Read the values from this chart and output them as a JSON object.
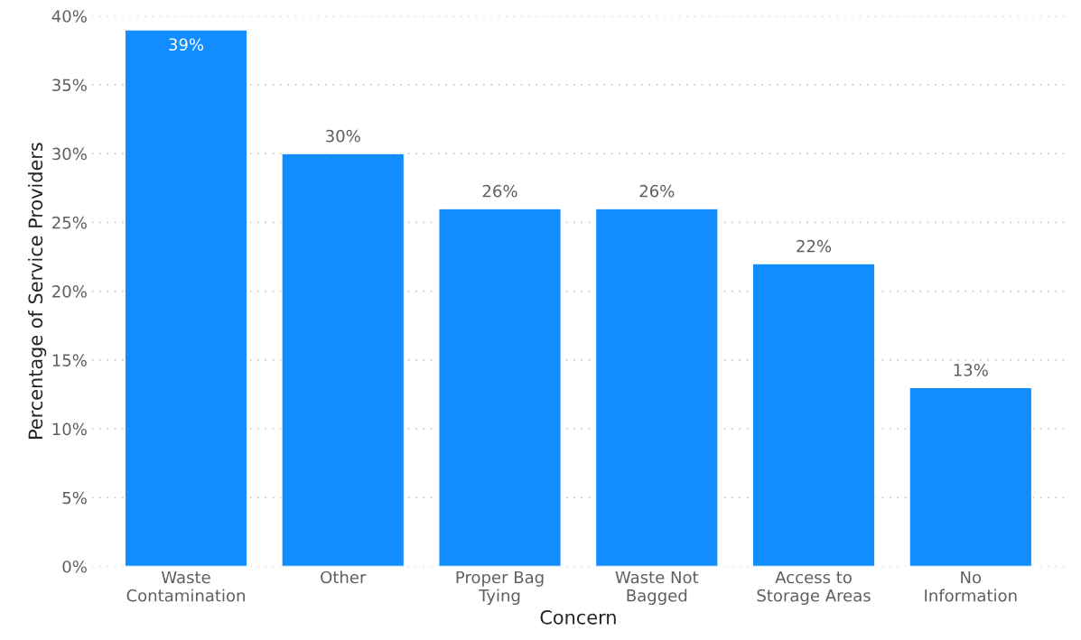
{
  "chart_data": {
    "type": "bar",
    "xlabel": "Concern",
    "ylabel": "Percentage of Service Providers",
    "categories": [
      "Waste\nContamination",
      "Other",
      "Proper Bag\nTying",
      "Waste Not\nBagged",
      "Access to\nStorage Areas",
      "No\nInformation"
    ],
    "values": [
      39,
      30,
      26,
      26,
      22,
      13
    ],
    "value_labels": [
      "39%",
      "30%",
      "26%",
      "26%",
      "22%",
      "13%"
    ],
    "color": "#118dff",
    "ylim": [
      0,
      40
    ],
    "yticks": [
      {
        "value": 0,
        "label": "0%"
      },
      {
        "value": 5,
        "label": "5%"
      },
      {
        "value": 10,
        "label": "10%"
      },
      {
        "value": 15,
        "label": "15%"
      },
      {
        "value": 20,
        "label": "20%"
      },
      {
        "value": 25,
        "label": "25%"
      },
      {
        "value": 30,
        "label": "30%"
      },
      {
        "value": 35,
        "label": "35%"
      },
      {
        "value": 40,
        "label": "40%"
      }
    ],
    "grid": "y"
  }
}
